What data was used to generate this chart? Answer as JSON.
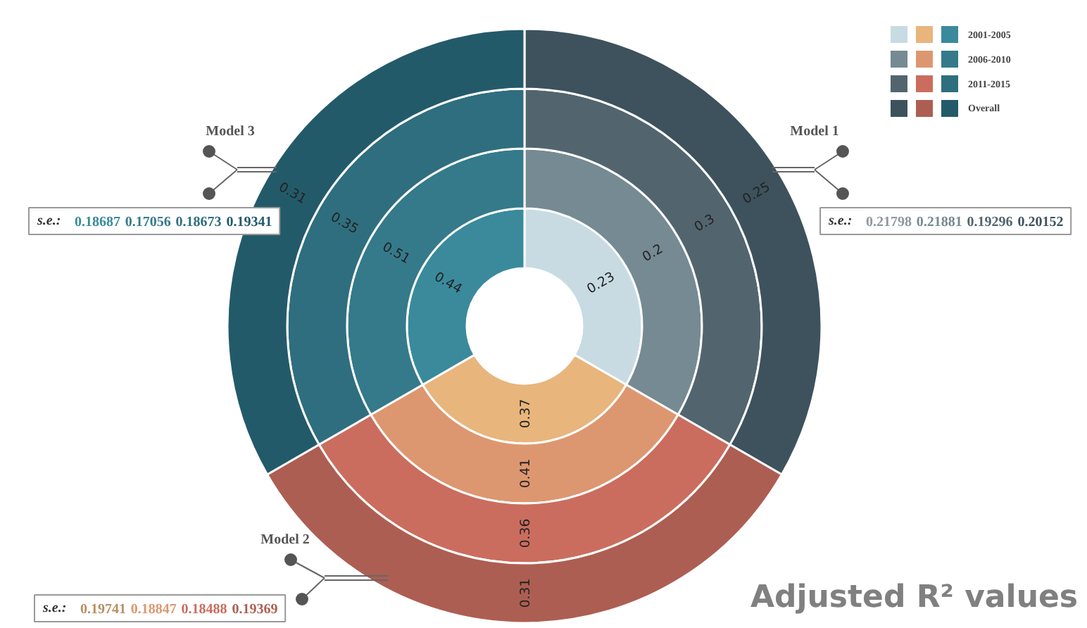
{
  "chart_data": {
    "type": "other",
    "title": "Adjusted R² values",
    "categories": [
      "Model 1",
      "Model 2",
      "Model 3"
    ],
    "legend": "top right",
    "data_labels": true,
    "series": [
      {
        "name": "2001-2005",
        "colors": [
          "#c8dbe3",
          "#e8b57c",
          "#3a8a9c"
        ],
        "values": [
          0.23,
          0.37,
          0.44
        ]
      },
      {
        "name": "2006-2010",
        "colors": [
          "#758a92",
          "#dd9770",
          "#357a8a"
        ],
        "values": [
          0.2,
          0.41,
          0.51
        ]
      },
      {
        "name": "2011-2015",
        "colors": [
          "#52656e",
          "#cb6d5e",
          "#2f6e7e"
        ],
        "values": [
          0.3,
          0.36,
          0.35
        ]
      },
      {
        "name": "Overall",
        "colors": [
          "#3d525c",
          "#ad5e52",
          "#235a6a"
        ],
        "values": [
          0.25,
          0.31,
          0.31
        ]
      }
    ],
    "annotations": [
      "s.e.: 0.21798 0.21881 0.19296 0.20152",
      "s.e.: 0.19741 0.18847 0.18488 0.19369",
      "s.e.: 0.18687 0.17056 0.18673 0.19341"
    ]
  }
}
